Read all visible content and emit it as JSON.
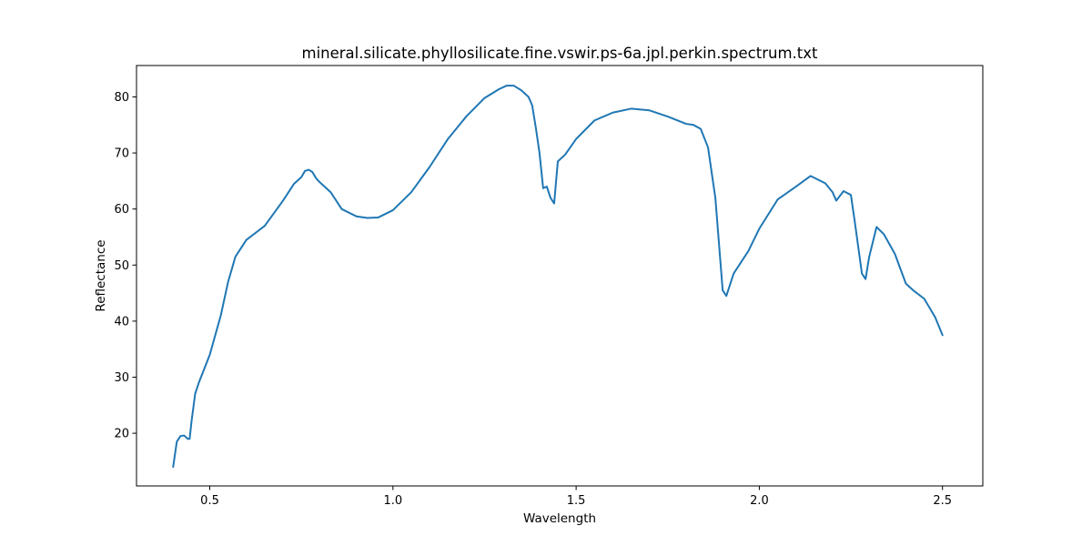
{
  "chart_data": {
    "type": "line",
    "title": "mineral.silicate.phyllosilicate.fine.vswir.ps-6a.jpl.perkin.spectrum.txt",
    "xlabel": "Wavelength",
    "ylabel": "Reflectance",
    "xlim": [
      0.3,
      2.61
    ],
    "ylim": [
      10.6,
      85.6
    ],
    "xticks": [
      0.5,
      1.0,
      1.5,
      2.0,
      2.5
    ],
    "xtick_labels": [
      "0.5",
      "1.0",
      "1.5",
      "2.0",
      "2.5"
    ],
    "yticks": [
      20,
      30,
      40,
      50,
      60,
      70,
      80
    ],
    "ytick_labels": [
      "20",
      "30",
      "40",
      "50",
      "60",
      "70",
      "80"
    ],
    "grid": false,
    "series": [
      {
        "color": "#1f77b4",
        "x": [
          0.4,
          0.41,
          0.42,
          0.43,
          0.44,
          0.445,
          0.45,
          0.46,
          0.47,
          0.5,
          0.53,
          0.55,
          0.57,
          0.6,
          0.65,
          0.7,
          0.73,
          0.75,
          0.76,
          0.77,
          0.78,
          0.79,
          0.8,
          0.83,
          0.86,
          0.9,
          0.93,
          0.96,
          1.0,
          1.05,
          1.1,
          1.15,
          1.2,
          1.25,
          1.29,
          1.31,
          1.33,
          1.35,
          1.37,
          1.38,
          1.39,
          1.4,
          1.41,
          1.42,
          1.43,
          1.44,
          1.45,
          1.47,
          1.5,
          1.55,
          1.6,
          1.65,
          1.7,
          1.75,
          1.8,
          1.82,
          1.84,
          1.86,
          1.88,
          1.9,
          1.91,
          1.93,
          1.97,
          2.0,
          2.05,
          2.1,
          2.14,
          2.18,
          2.2,
          2.21,
          2.23,
          2.25,
          2.26,
          2.28,
          2.29,
          2.3,
          2.32,
          2.34,
          2.37,
          2.4,
          2.42,
          2.45,
          2.48,
          2.5
        ],
        "values": [
          14.0,
          18.5,
          19.5,
          19.6,
          19.0,
          19.0,
          22.0,
          27.0,
          29.0,
          34.0,
          41.0,
          47.0,
          51.5,
          54.5,
          57.0,
          61.5,
          64.5,
          65.7,
          66.8,
          67.0,
          66.6,
          65.5,
          64.8,
          63.0,
          60.0,
          58.7,
          58.4,
          58.5,
          59.8,
          63.0,
          67.5,
          72.5,
          76.5,
          79.8,
          81.4,
          82.0,
          82.0,
          81.2,
          80.0,
          78.5,
          74.5,
          70.0,
          63.7,
          64.0,
          62.0,
          61.0,
          68.5,
          69.7,
          72.5,
          75.8,
          77.2,
          77.9,
          77.6,
          76.5,
          75.2,
          75.0,
          74.3,
          71.0,
          62.0,
          45.5,
          44.5,
          48.5,
          52.5,
          56.5,
          61.7,
          64.0,
          65.9,
          64.6,
          63.0,
          61.5,
          63.2,
          62.5,
          58.0,
          48.5,
          47.5,
          51.5,
          56.8,
          55.5,
          52.0,
          46.7,
          45.5,
          44.0,
          40.7,
          37.5
        ]
      }
    ]
  }
}
